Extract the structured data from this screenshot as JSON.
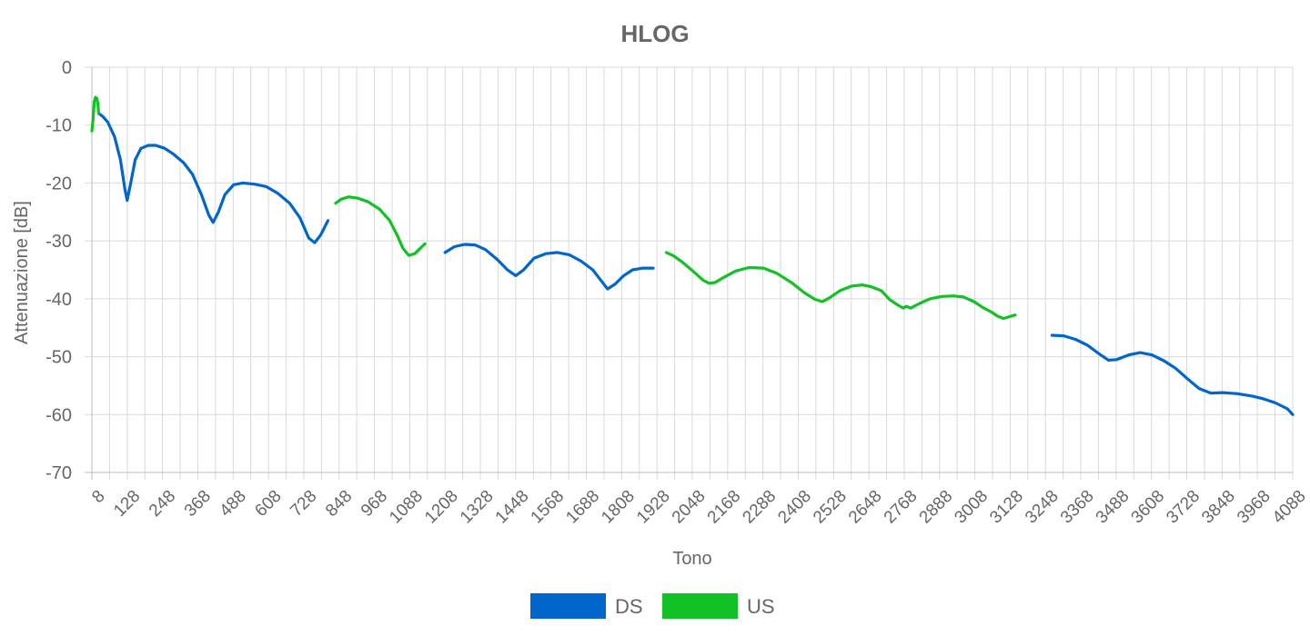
{
  "chart_data": {
    "type": "line",
    "title": "HLOG",
    "xlabel": "Tono",
    "ylabel": "Attenuazione [dB]",
    "xlim": [
      8,
      4088
    ],
    "ylim": [
      -70,
      0
    ],
    "yticks": [
      "0",
      "-10",
      "-20",
      "-30",
      "-40",
      "-50",
      "-60",
      "-70"
    ],
    "xticks": [
      "8",
      "128",
      "248",
      "368",
      "488",
      "608",
      "728",
      "848",
      "968",
      "1088",
      "1208",
      "1328",
      "1448",
      "1568",
      "1688",
      "1808",
      "1928",
      "2048",
      "2168",
      "2288",
      "2408",
      "2528",
      "2648",
      "2768",
      "2888",
      "3008",
      "3128",
      "3248",
      "3368",
      "3488",
      "3608",
      "3728",
      "3848",
      "3968",
      "4088"
    ],
    "grid": true,
    "legend_position": "bottom",
    "series": [
      {
        "name": "DS",
        "color": "#0066cc",
        "segments": [
          [
            [
              32,
              -8
            ],
            [
              45,
              -8.5
            ],
            [
              62,
              -9.5
            ],
            [
              85,
              -12
            ],
            [
              105,
              -16
            ],
            [
              120,
              -21
            ],
            [
              128,
              -23
            ],
            [
              140,
              -20
            ],
            [
              155,
              -16
            ],
            [
              175,
              -14
            ],
            [
              200,
              -13.5
            ],
            [
              225,
              -13.5
            ],
            [
              255,
              -14
            ],
            [
              285,
              -15
            ],
            [
              320,
              -16.5
            ],
            [
              350,
              -18.5
            ],
            [
              380,
              -22
            ],
            [
              405,
              -25.5
            ],
            [
              420,
              -26.8
            ],
            [
              438,
              -25
            ],
            [
              460,
              -22
            ],
            [
              490,
              -20.3
            ],
            [
              520,
              -20
            ],
            [
              560,
              -20.2
            ],
            [
              600,
              -20.6
            ],
            [
              640,
              -21.8
            ],
            [
              680,
              -23.5
            ],
            [
              715,
              -26
            ],
            [
              745,
              -29.5
            ],
            [
              765,
              -30.3
            ],
            [
              785,
              -29
            ],
            [
              810,
              -26.5
            ]
          ],
          [
            [
              1208,
              -32
            ],
            [
              1240,
              -31
            ],
            [
              1275,
              -30.6
            ],
            [
              1310,
              -30.7
            ],
            [
              1345,
              -31.5
            ],
            [
              1385,
              -33.2
            ],
            [
              1420,
              -35
            ],
            [
              1448,
              -36
            ],
            [
              1475,
              -35
            ],
            [
              1510,
              -33
            ],
            [
              1550,
              -32.2
            ],
            [
              1590,
              -32
            ],
            [
              1630,
              -32.4
            ],
            [
              1670,
              -33.5
            ],
            [
              1710,
              -35
            ],
            [
              1740,
              -37
            ],
            [
              1760,
              -38.3
            ],
            [
              1785,
              -37.5
            ],
            [
              1815,
              -36
            ],
            [
              1845,
              -35
            ],
            [
              1880,
              -34.7
            ],
            [
              1915,
              -34.7
            ]
          ],
          [
            [
              3270,
              -46.3
            ],
            [
              3310,
              -46.4
            ],
            [
              3350,
              -47
            ],
            [
              3390,
              -48
            ],
            [
              3430,
              -49.5
            ],
            [
              3462,
              -50.6
            ],
            [
              3490,
              -50.5
            ],
            [
              3530,
              -49.7
            ],
            [
              3570,
              -49.3
            ],
            [
              3610,
              -49.7
            ],
            [
              3650,
              -50.7
            ],
            [
              3690,
              -52
            ],
            [
              3730,
              -53.8
            ],
            [
              3770,
              -55.5
            ],
            [
              3810,
              -56.3
            ],
            [
              3850,
              -56.2
            ],
            [
              3900,
              -56.4
            ],
            [
              3950,
              -56.8
            ],
            [
              3990,
              -57.3
            ],
            [
              4030,
              -58
            ],
            [
              4070,
              -59
            ],
            [
              4088,
              -60
            ]
          ]
        ]
      },
      {
        "name": "US",
        "color": "#11c125",
        "segments": [
          [
            [
              8,
              -11
            ],
            [
              12,
              -9
            ],
            [
              16,
              -6
            ],
            [
              20,
              -5.2
            ],
            [
              25,
              -5.4
            ],
            [
              29,
              -6.5
            ],
            [
              31,
              -8
            ]
          ],
          [
            [
              836,
              -23.5
            ],
            [
              855,
              -22.8
            ],
            [
              880,
              -22.4
            ],
            [
              910,
              -22.6
            ],
            [
              945,
              -23.2
            ],
            [
              985,
              -24.5
            ],
            [
              1020,
              -26.5
            ],
            [
              1045,
              -29
            ],
            [
              1065,
              -31.3
            ],
            [
              1085,
              -32.5
            ],
            [
              1105,
              -32.2
            ],
            [
              1125,
              -31.2
            ],
            [
              1140,
              -30.5
            ]
          ],
          [
            [
              1960,
              -32
            ],
            [
              1985,
              -32.6
            ],
            [
              2015,
              -33.7
            ],
            [
              2050,
              -35.2
            ],
            [
              2085,
              -36.8
            ],
            [
              2105,
              -37.3
            ],
            [
              2125,
              -37.2
            ],
            [
              2155,
              -36.3
            ],
            [
              2195,
              -35.2
            ],
            [
              2240,
              -34.6
            ],
            [
              2290,
              -34.7
            ],
            [
              2335,
              -35.6
            ],
            [
              2385,
              -37.2
            ],
            [
              2430,
              -39
            ],
            [
              2465,
              -40.1
            ],
            [
              2490,
              -40.5
            ],
            [
              2515,
              -39.8
            ],
            [
              2550,
              -38.6
            ],
            [
              2590,
              -37.8
            ],
            [
              2625,
              -37.6
            ],
            [
              2655,
              -37.9
            ],
            [
              2690,
              -38.6
            ],
            [
              2720,
              -40.2
            ],
            [
              2750,
              -41.2
            ],
            [
              2765,
              -41.6
            ],
            [
              2775,
              -41.3
            ],
            [
              2790,
              -41.6
            ],
            [
              2820,
              -40.8
            ],
            [
              2855,
              -40
            ],
            [
              2895,
              -39.6
            ],
            [
              2935,
              -39.5
            ],
            [
              2970,
              -39.7
            ],
            [
              3005,
              -40.5
            ],
            [
              3035,
              -41.5
            ],
            [
              3065,
              -42.3
            ],
            [
              3085,
              -43
            ],
            [
              3105,
              -43.4
            ],
            [
              3125,
              -43.1
            ],
            [
              3145,
              -42.8
            ]
          ]
        ]
      }
    ]
  }
}
